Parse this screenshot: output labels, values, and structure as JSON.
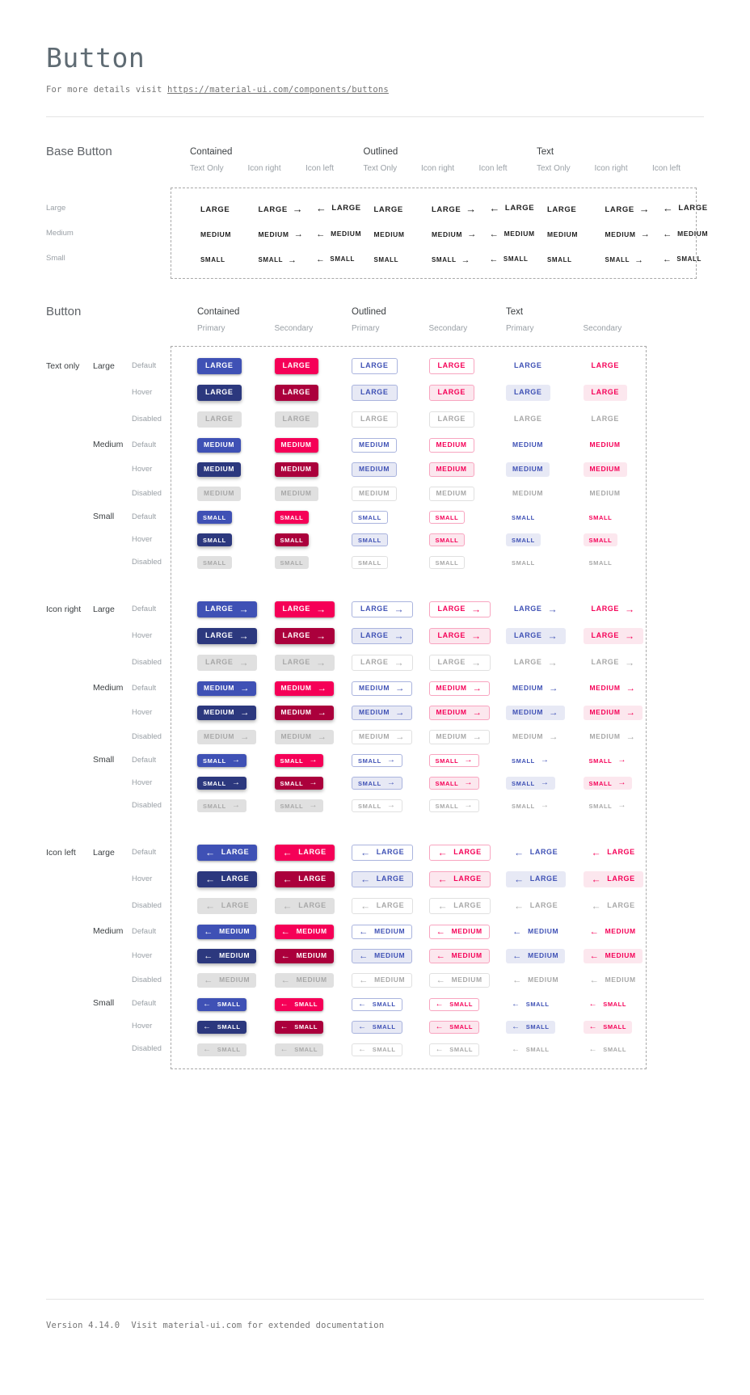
{
  "page": {
    "title": "Button",
    "intro": {
      "prefix": "For more details visit",
      "link": "https://material-ui.com/components/buttons"
    },
    "footer": {
      "version": "Version 4.14.0",
      "note": "Visit material-ui.com for extended documentation"
    }
  },
  "icons": {
    "arrow_right": "→",
    "arrow_left": "←"
  },
  "base_section": {
    "title": "Base Button",
    "groups": [
      {
        "label": "Contained"
      },
      {
        "label": "Outlined"
      },
      {
        "label": "Text"
      }
    ],
    "variants": [
      {
        "label": "Text Only",
        "icon": "none"
      },
      {
        "label": "Icon right",
        "icon": "right"
      },
      {
        "label": "Icon left",
        "icon": "left"
      }
    ],
    "rows": [
      {
        "label": "Large",
        "size": "large",
        "text": "LARGE"
      },
      {
        "label": "Medium",
        "size": "medium",
        "text": "MEDIUM"
      },
      {
        "label": "Small",
        "size": "small",
        "text": "SMALL"
      }
    ]
  },
  "button_section": {
    "title": "Button",
    "groups": [
      {
        "label": "Contained",
        "variant": "contained"
      },
      {
        "label": "Outlined",
        "variant": "outlined"
      },
      {
        "label": "Text",
        "variant": "text"
      }
    ],
    "palettes": [
      {
        "label": "Primary",
        "key": "primary"
      },
      {
        "label": "Secondary",
        "key": "secondary"
      }
    ],
    "icon_groups": [
      {
        "label": "Text only",
        "icon": "none"
      },
      {
        "label": "Icon right",
        "icon": "right"
      },
      {
        "label": "Icon left",
        "icon": "left"
      }
    ],
    "sizes": [
      {
        "label": "Large",
        "size": "large",
        "text": "LARGE"
      },
      {
        "label": "Medium",
        "size": "medium",
        "text": "MEDIUM"
      },
      {
        "label": "Small",
        "size": "small",
        "text": "SMALL"
      }
    ],
    "states": [
      {
        "label": "Default",
        "state": "default"
      },
      {
        "label": "Hover",
        "state": "hover"
      },
      {
        "label": "Disabled",
        "state": "disabled"
      }
    ]
  },
  "colors": {
    "primary": "#3f51b5",
    "primary_dark": "#2c387e",
    "primary_light_bg": "#e7e9f5",
    "primary_border": "#aab4de",
    "secondary": "#f50057",
    "secondary_dark": "#ab003c",
    "secondary_light_bg": "#fce7ee",
    "secondary_border": "#f8a5c0",
    "disabled_bg": "#e0e0e0",
    "disabled_text": "#a8a8a8",
    "disabled_border": "#e0e0e0"
  }
}
